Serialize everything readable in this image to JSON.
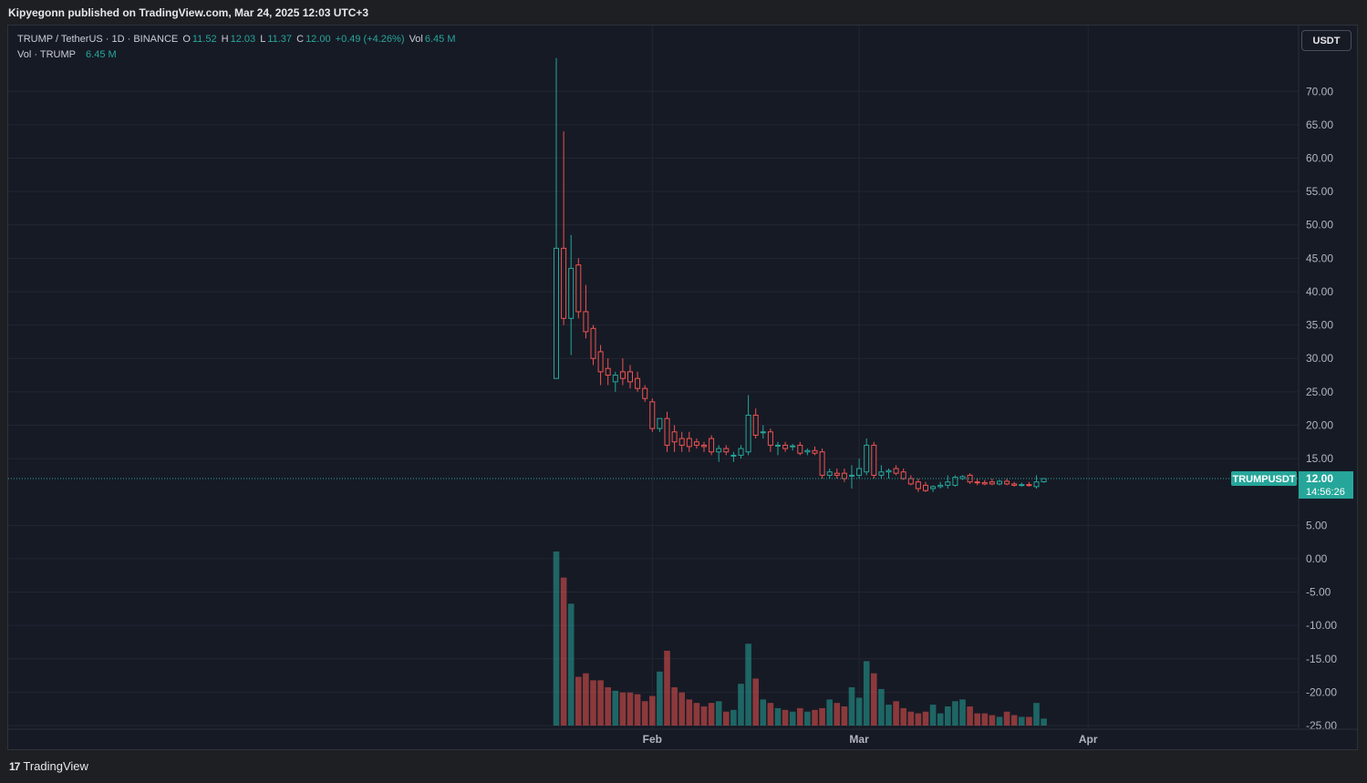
{
  "publish_line": "Kipyegonn published on TradingView.com, Mar 24, 2025 12:03 UTC+3",
  "legend": {
    "symbol": "TRUMP / TetherUS · 1D · BINANCE",
    "o_label": "O",
    "o": "11.52",
    "h_label": "H",
    "h": "12.03",
    "l_label": "L",
    "l": "11.37",
    "c_label": "C",
    "c": "12.00",
    "change": "+0.49 (+4.26%)",
    "vol_label": "Vol",
    "vol": "6.45 M",
    "vol_row_label": "Vol · TRUMP",
    "vol_row_value": "6.45 M"
  },
  "currency_button": "USDT",
  "price_tag": {
    "symbol": "TRUMPUSDT",
    "price": "12.00",
    "countdown": "14:56:26"
  },
  "footer": {
    "logo": "17",
    "brand": "TradingView"
  },
  "colors": {
    "up": "#26a69a",
    "down": "#ef5350",
    "bg": "#161a25",
    "grid": "#232633"
  },
  "chart_data": {
    "type": "candlestick",
    "y_ticks": [
      "70.00",
      "65.00",
      "60.00",
      "55.00",
      "50.00",
      "45.00",
      "40.00",
      "35.00",
      "30.00",
      "25.00",
      "20.00",
      "15.00",
      "5.00",
      "0.00",
      "-5.00",
      "-10.00",
      "-15.00",
      "-20.00",
      "-25.00"
    ],
    "x_ticks": [
      {
        "label": "Feb",
        "day": 13
      },
      {
        "label": "Mar",
        "day": 41
      },
      {
        "label": "Apr",
        "day": 72
      }
    ],
    "ylim": [
      -28,
      77
    ],
    "first_date": "Jan 19",
    "candles": [
      {
        "o": 27,
        "h": 75,
        "l": 27,
        "c": 46.5,
        "v": 100
      },
      {
        "o": 46.5,
        "h": 64,
        "l": 35,
        "c": 36,
        "v": 85
      },
      {
        "o": 36,
        "h": 48.5,
        "l": 30.5,
        "c": 43.5,
        "v": 70
      },
      {
        "o": 44,
        "h": 45,
        "l": 36,
        "c": 37,
        "v": 28
      },
      {
        "o": 37,
        "h": 41,
        "l": 33,
        "c": 34,
        "v": 30
      },
      {
        "o": 34.5,
        "h": 35,
        "l": 29,
        "c": 30,
        "v": 26
      },
      {
        "o": 31,
        "h": 32,
        "l": 26,
        "c": 28,
        "v": 26
      },
      {
        "o": 28.5,
        "h": 30,
        "l": 26,
        "c": 27.5,
        "v": 22
      },
      {
        "o": 26.5,
        "h": 28,
        "l": 25,
        "c": 27.5,
        "v": 20
      },
      {
        "o": 28,
        "h": 30,
        "l": 26,
        "c": 27,
        "v": 19
      },
      {
        "o": 28,
        "h": 29,
        "l": 25.5,
        "c": 26.5,
        "v": 19
      },
      {
        "o": 27,
        "h": 28,
        "l": 25,
        "c": 25.5,
        "v": 18
      },
      {
        "o": 25.5,
        "h": 26,
        "l": 23.5,
        "c": 24,
        "v": 14
      },
      {
        "o": 23.5,
        "h": 24,
        "l": 19,
        "c": 19.5,
        "v": 17
      },
      {
        "o": 19.5,
        "h": 21,
        "l": 19,
        "c": 21,
        "v": 31
      },
      {
        "o": 21,
        "h": 22,
        "l": 16,
        "c": 17,
        "v": 43
      },
      {
        "o": 19,
        "h": 20,
        "l": 16,
        "c": 17.5,
        "v": 22
      },
      {
        "o": 18,
        "h": 19,
        "l": 16,
        "c": 17,
        "v": 19
      },
      {
        "o": 18,
        "h": 19,
        "l": 16,
        "c": 16.8,
        "v": 15
      },
      {
        "o": 17.5,
        "h": 18,
        "l": 16.5,
        "c": 17,
        "v": 13
      },
      {
        "o": 17,
        "h": 17.5,
        "l": 16,
        "c": 16.8,
        "v": 11
      },
      {
        "o": 18,
        "h": 18.5,
        "l": 15.5,
        "c": 16,
        "v": 13
      },
      {
        "o": 16,
        "h": 17,
        "l": 14.5,
        "c": 16.5,
        "v": 14
      },
      {
        "o": 16.5,
        "h": 17,
        "l": 15.5,
        "c": 16,
        "v": 8
      },
      {
        "o": 15.5,
        "h": 16,
        "l": 14.5,
        "c": 15.5,
        "v": 9
      },
      {
        "o": 15.5,
        "h": 17,
        "l": 15,
        "c": 16.5,
        "v": 24
      },
      {
        "o": 16,
        "h": 24.5,
        "l": 15.5,
        "c": 21.5,
        "v": 47
      },
      {
        "o": 21.5,
        "h": 22.5,
        "l": 18,
        "c": 18.5,
        "v": 27
      },
      {
        "o": 19,
        "h": 20,
        "l": 18,
        "c": 19,
        "v": 15
      },
      {
        "o": 19,
        "h": 19.5,
        "l": 16,
        "c": 17,
        "v": 13
      },
      {
        "o": 17,
        "h": 17.5,
        "l": 15.5,
        "c": 17,
        "v": 10
      },
      {
        "o": 17,
        "h": 17.5,
        "l": 16,
        "c": 16.5,
        "v": 9
      },
      {
        "o": 16.8,
        "h": 17.2,
        "l": 16.2,
        "c": 16.9,
        "v": 8
      },
      {
        "o": 17,
        "h": 17.5,
        "l": 15.5,
        "c": 15.8,
        "v": 10
      },
      {
        "o": 16,
        "h": 16.5,
        "l": 15.5,
        "c": 16.2,
        "v": 8
      },
      {
        "o": 16.2,
        "h": 16.8,
        "l": 15.5,
        "c": 15.8,
        "v": 9
      },
      {
        "o": 16,
        "h": 16.5,
        "l": 12,
        "c": 12.5,
        "v": 10
      },
      {
        "o": 12.5,
        "h": 13.5,
        "l": 12,
        "c": 13,
        "v": 15
      },
      {
        "o": 12.8,
        "h": 13.5,
        "l": 12,
        "c": 12.5,
        "v": 13
      },
      {
        "o": 12.8,
        "h": 13.5,
        "l": 11.5,
        "c": 12,
        "v": 11
      },
      {
        "o": 12.5,
        "h": 14,
        "l": 10.5,
        "c": 12.5,
        "v": 22
      },
      {
        "o": 12.5,
        "h": 15,
        "l": 12,
        "c": 13.5,
        "v": 16
      },
      {
        "o": 13,
        "h": 18,
        "l": 12.5,
        "c": 17,
        "v": 37
      },
      {
        "o": 17,
        "h": 17.5,
        "l": 12,
        "c": 12.5,
        "v": 30
      },
      {
        "o": 12.5,
        "h": 14,
        "l": 12,
        "c": 13,
        "v": 21
      },
      {
        "o": 13,
        "h": 13.5,
        "l": 12,
        "c": 13.2,
        "v": 12
      },
      {
        "o": 13.5,
        "h": 14,
        "l": 12.5,
        "c": 12.8,
        "v": 14
      },
      {
        "o": 13,
        "h": 13.5,
        "l": 11.8,
        "c": 12,
        "v": 10
      },
      {
        "o": 12,
        "h": 12.5,
        "l": 11,
        "c": 11.2,
        "v": 8
      },
      {
        "o": 11.5,
        "h": 12,
        "l": 10,
        "c": 10.5,
        "v": 7
      },
      {
        "o": 11,
        "h": 11.5,
        "l": 10,
        "c": 10.2,
        "v": 8
      },
      {
        "o": 10.5,
        "h": 11,
        "l": 10,
        "c": 10.8,
        "v": 12
      },
      {
        "o": 10.8,
        "h": 11.5,
        "l": 10.5,
        "c": 11,
        "v": 7
      },
      {
        "o": 11,
        "h": 12.5,
        "l": 10.5,
        "c": 11.5,
        "v": 11
      },
      {
        "o": 11,
        "h": 12.5,
        "l": 10.8,
        "c": 12.2,
        "v": 14
      },
      {
        "o": 12,
        "h": 12.5,
        "l": 11.8,
        "c": 12.3,
        "v": 15
      },
      {
        "o": 12.5,
        "h": 12.8,
        "l": 11.2,
        "c": 11.5,
        "v": 11
      },
      {
        "o": 11.5,
        "h": 12,
        "l": 11,
        "c": 11.4,
        "v": 7
      },
      {
        "o": 11.4,
        "h": 11.8,
        "l": 11,
        "c": 11.2,
        "v": 7
      },
      {
        "o": 11.5,
        "h": 12,
        "l": 11,
        "c": 11.2,
        "v": 6
      },
      {
        "o": 11.2,
        "h": 11.8,
        "l": 11,
        "c": 11.6,
        "v": 5
      },
      {
        "o": 11.6,
        "h": 12,
        "l": 11,
        "c": 11.2,
        "v": 8
      },
      {
        "o": 11.2,
        "h": 11.5,
        "l": 10.8,
        "c": 11,
        "v": 6
      },
      {
        "o": 11,
        "h": 11.4,
        "l": 10.8,
        "c": 11.1,
        "v": 5
      },
      {
        "o": 11.1,
        "h": 11.5,
        "l": 10.8,
        "c": 11,
        "v": 5
      },
      {
        "o": 10.8,
        "h": 12.5,
        "l": 10.5,
        "c": 11.5,
        "v": 13
      },
      {
        "o": 11.52,
        "h": 12.03,
        "l": 11.37,
        "c": 12.0,
        "v": 4
      }
    ]
  }
}
